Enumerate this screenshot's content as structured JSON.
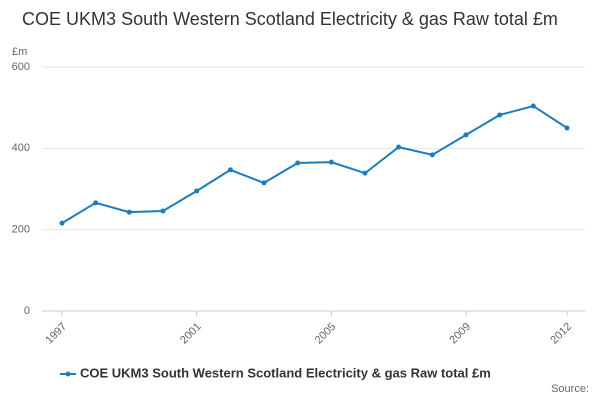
{
  "chart_data": {
    "type": "line",
    "title": "COE UKM3 South Western Scotland Electricity & gas Raw total £m",
    "y_label": "£m",
    "source": "Source:",
    "x": [
      1997,
      1998,
      1999,
      2000,
      2001,
      2002,
      2003,
      2004,
      2005,
      2006,
      2007,
      2008,
      2009,
      2010,
      2011,
      2012
    ],
    "series": [
      {
        "name": "COE UKM3 South Western Scotland Electricity & gas Raw total £m",
        "color": "#1a7dc0",
        "values": [
          216,
          266,
          243,
          246,
          295,
          347,
          315,
          364,
          366,
          339,
          403,
          384,
          433,
          482,
          504,
          450
        ]
      }
    ],
    "xlim": [
      1997,
      2012
    ],
    "xticks": [
      1997,
      2001,
      2005,
      2009,
      2012
    ],
    "ylim": [
      0,
      600
    ],
    "yticks": [
      0,
      200,
      400,
      600
    ],
    "grid": true
  }
}
